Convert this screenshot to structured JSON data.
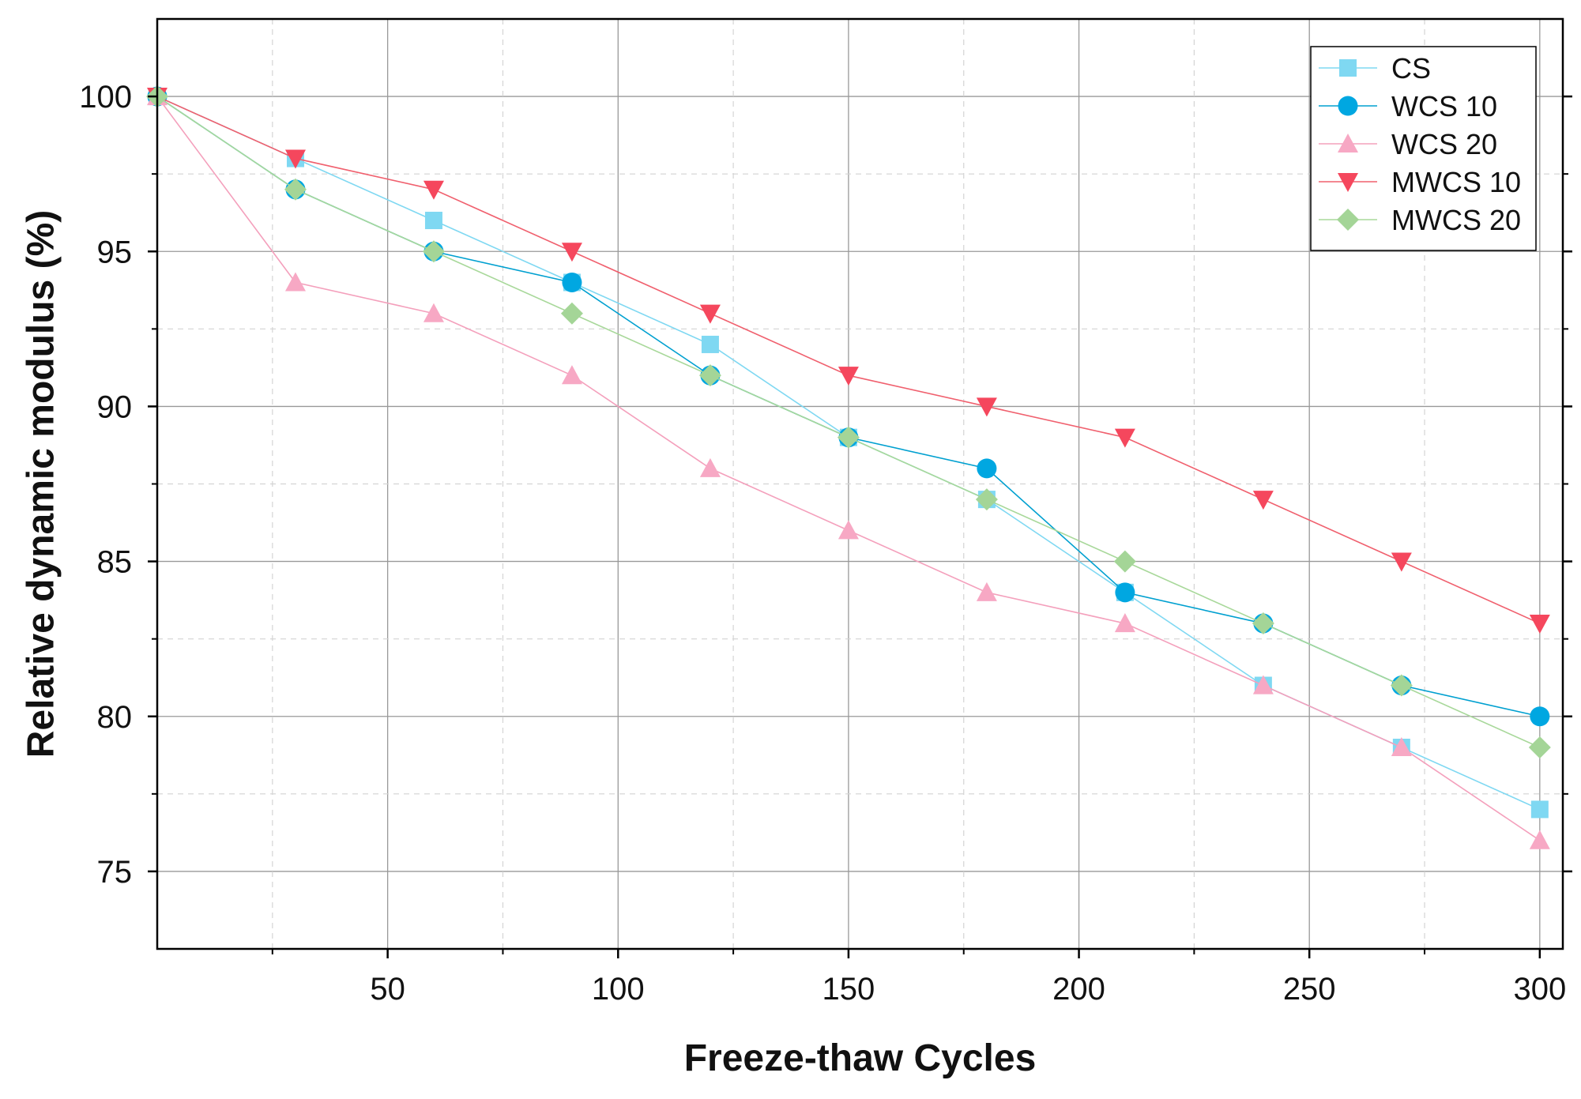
{
  "chart_data": {
    "type": "line",
    "title": "",
    "xlabel": "Freeze-thaw Cycles",
    "ylabel": "Relative dynamic modulus (%)",
    "xlim": [
      0,
      305
    ],
    "ylim": [
      72.5,
      102.5
    ],
    "xticks": [
      50,
      100,
      150,
      200,
      250,
      300
    ],
    "xtick_labels": [
      "50",
      "100",
      "150",
      "200",
      "250",
      "300"
    ],
    "x_minor_ticks": [
      25,
      75,
      125,
      175,
      225,
      275
    ],
    "yticks": [
      75,
      80,
      85,
      90,
      95,
      100
    ],
    "ytick_labels": [
      "75",
      "80",
      "85",
      "90",
      "95",
      "100"
    ],
    "y_minor_ticks": [
      77.5,
      82.5,
      87.5,
      92.5,
      97.5
    ],
    "grid": true,
    "legend_position": "top-right",
    "x": [
      0,
      30,
      60,
      90,
      120,
      150,
      180,
      210,
      240,
      270,
      300
    ],
    "series": [
      {
        "name": "CS",
        "marker": "square",
        "color": "#7fd8f2",
        "line_color": "#7fd8f2",
        "values": [
          100,
          98,
          96,
          94,
          92,
          89,
          87,
          84,
          81,
          79,
          77
        ]
      },
      {
        "name": "WCS 10",
        "marker": "circle",
        "color": "#00a7e1",
        "line_color": "#00a0d0",
        "values": [
          100,
          97,
          95,
          94,
          91,
          89,
          88,
          84,
          83,
          81,
          80
        ]
      },
      {
        "name": "WCS 20",
        "marker": "triangle-up",
        "color": "#f7a8c4",
        "line_color": "#f4a0bc",
        "values": [
          100,
          94,
          93,
          91,
          88,
          86,
          84,
          83,
          81,
          79,
          76
        ]
      },
      {
        "name": "MWCS 10",
        "marker": "triangle-down",
        "color": "#f5475d",
        "line_color": "#f0606e",
        "values": [
          100,
          98,
          97,
          95,
          93,
          91,
          90,
          89,
          87,
          85,
          83
        ]
      },
      {
        "name": "MWCS 20",
        "marker": "diamond",
        "color": "#a4d597",
        "line_color": "#a8d89a",
        "values": [
          100,
          97,
          95,
          93,
          91,
          89,
          87,
          85,
          83,
          81,
          79
        ]
      }
    ]
  }
}
